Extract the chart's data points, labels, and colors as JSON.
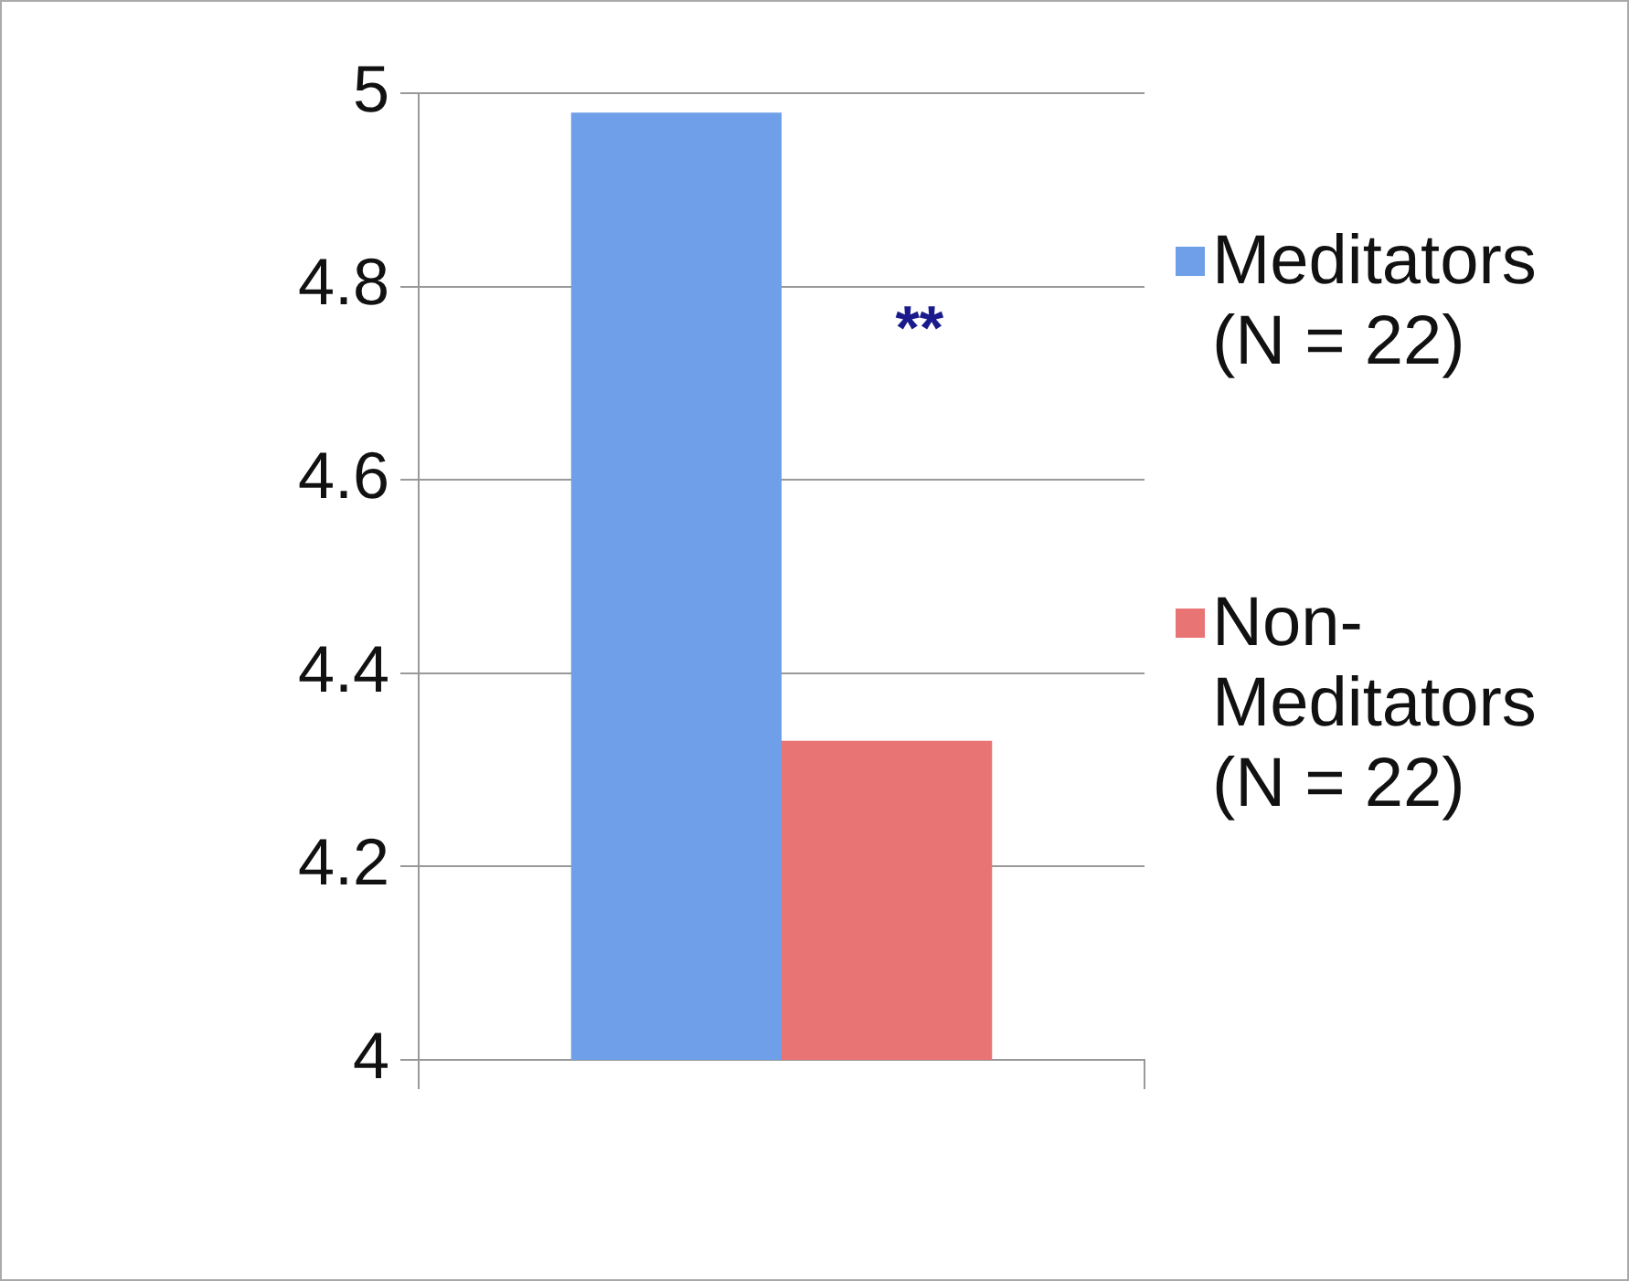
{
  "chart_data": {
    "type": "bar",
    "categories": [
      null
    ],
    "series": [
      {
        "name": "Meditators (N = 22)",
        "color": "#6f9fe8",
        "values": [
          4.98
        ]
      },
      {
        "name": "Non-Meditators (N = 22)",
        "color": "#e97474",
        "values": [
          4.33
        ]
      }
    ],
    "ylim": [
      4,
      5
    ],
    "yticks": [
      4,
      4.2,
      4.4,
      4.6,
      4.8,
      5
    ],
    "grid": "y",
    "legend": "right",
    "annotations": [
      "**"
    ]
  }
}
